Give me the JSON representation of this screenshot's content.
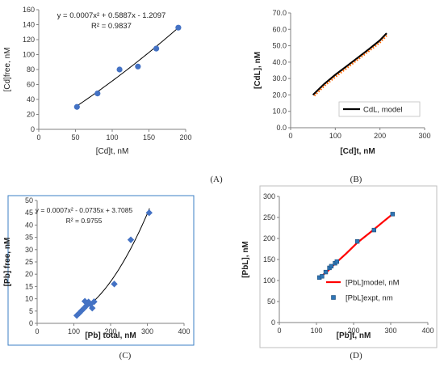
{
  "chart_data": [
    {
      "id": "A",
      "type": "scatter",
      "panel_label": "(A)",
      "xlabel": "[Cd]t, nM",
      "ylabel": "[Cd]free, nM",
      "xlim": [
        0,
        200
      ],
      "ylim": [
        0,
        160
      ],
      "xticks": [
        0,
        50,
        100,
        150,
        200
      ],
      "yticks": [
        0,
        20,
        40,
        60,
        80,
        100,
        120,
        140,
        160
      ],
      "grid": false,
      "series": [
        {
          "marker": "circle",
          "color": "#4472c4",
          "points": [
            [
              52,
              30
            ],
            [
              80,
              48
            ],
            [
              110,
              80
            ],
            [
              135,
              84
            ],
            [
              160,
              108
            ],
            [
              190,
              136
            ]
          ]
        }
      ],
      "trendline": {
        "type": "poly2",
        "coef": [
          0.0007,
          0.5887,
          -1.2097
        ],
        "x_range": [
          50,
          191
        ],
        "color": "#000000"
      },
      "annotation": {
        "equation": "y = 0.0007x² + 0.5887x - 1.2097",
        "r2": "R² = 0.9837",
        "position": "top-left"
      }
    },
    {
      "id": "B",
      "type": "line",
      "panel_label": "(B)",
      "xlabel": "[Cd]t, nM",
      "ylabel": "[CdL], nM",
      "xlim": [
        0,
        300
      ],
      "ylim": [
        0,
        70
      ],
      "xticks": [
        0,
        100,
        200,
        300
      ],
      "yticks": [
        "0.0",
        "10.0",
        "20.0",
        "30.0",
        "40.0",
        "50.0",
        "60.0",
        "70.0"
      ],
      "yticks_values": [
        0,
        10,
        20,
        30,
        40,
        50,
        60,
        70
      ],
      "grid": false,
      "series": [
        {
          "name": "CdL, model",
          "color": "#000000",
          "style": "solid",
          "points": [
            [
              50,
              20
            ],
            [
              75,
              26.6
            ],
            [
              100,
              32.3
            ],
            [
              125,
              37.4
            ],
            [
              150,
              42.6
            ],
            [
              175,
              47.8
            ],
            [
              200,
              53.3
            ],
            [
              215,
              57.6
            ]
          ]
        },
        {
          "color": "#ff6600",
          "style": "dotted",
          "points": [
            [
              53,
              19.5
            ],
            [
              75,
              25.4
            ],
            [
              100,
              31.0
            ],
            [
              125,
              36.2
            ],
            [
              150,
              41.5
            ],
            [
              175,
              46.7
            ],
            [
              200,
              52.0
            ],
            [
              215,
              56.2
            ]
          ]
        }
      ],
      "legend": {
        "entries": [
          "CdL, model"
        ],
        "position": "bottom-right"
      }
    },
    {
      "id": "C",
      "type": "scatter",
      "panel_label": "(C)",
      "xlabel": "[Pb] total, nM",
      "ylabel": "[Pb] free, nM",
      "xlim": [
        0,
        400
      ],
      "ylim": [
        0,
        50
      ],
      "xticks": [
        0,
        100,
        200,
        300,
        400
      ],
      "yticks": [
        0,
        5,
        10,
        15,
        20,
        25,
        30,
        35,
        40,
        45,
        50
      ],
      "grid": false,
      "series": [
        {
          "marker": "diamond",
          "color": "#4472c4",
          "points": [
            [
              108,
              3.2
            ],
            [
              115,
              4.2
            ],
            [
              120,
              5.0
            ],
            [
              128,
              6.2
            ],
            [
              130,
              9.0
            ],
            [
              135,
              7.3
            ],
            [
              140,
              8.7
            ],
            [
              145,
              7.8
            ],
            [
              150,
              6.2
            ],
            [
              155,
              8.8
            ],
            [
              210,
              16.0
            ],
            [
              255,
              34.0
            ],
            [
              305,
              45.0
            ]
          ]
        }
      ],
      "trendline": {
        "type": "poly2",
        "coef": [
          0.0007,
          -0.0735,
          3.7085
        ],
        "x_range": [
          106,
          306
        ],
        "color": "#000000"
      },
      "annotation": {
        "equation": "y = 0.0007x² - 0.0735x + 3.7085",
        "r2": "R² = 0.9755",
        "position": "top-left"
      }
    },
    {
      "id": "D",
      "type": "line",
      "panel_label": "(D)",
      "xlabel": "[Pb]t, nM",
      "ylabel": "[PbL], nM",
      "xlim": [
        0,
        400
      ],
      "ylim": [
        0,
        300
      ],
      "xticks": [
        0,
        100,
        200,
        300,
        400
      ],
      "yticks": [
        0,
        50,
        100,
        150,
        200,
        250,
        300
      ],
      "grid": false,
      "series": [
        {
          "name": "[PbL]model, nM",
          "color": "#ff0000",
          "style": "solid",
          "points": [
            [
              108,
              107
            ],
            [
              130,
              122
            ],
            [
              150,
              140
            ],
            [
              180,
              164
            ],
            [
              210,
              190
            ],
            [
              250,
              218
            ],
            [
              280,
              240
            ],
            [
              305,
              258
            ]
          ]
        },
        {
          "name": "[PbL]expt, nm",
          "marker": "square",
          "color": "#2e75b6",
          "points": [
            [
              108,
              107
            ],
            [
              115,
              110
            ],
            [
              125,
              120
            ],
            [
              135,
              130
            ],
            [
              140,
              134
            ],
            [
              150,
              141
            ],
            [
              155,
              145
            ],
            [
              210,
              193
            ],
            [
              255,
              220
            ],
            [
              305,
              258
            ]
          ]
        }
      ],
      "legend": {
        "entries": [
          "[PbL]model, nM",
          "[PbL]expt, nm"
        ],
        "position": "bottom-right"
      }
    }
  ]
}
